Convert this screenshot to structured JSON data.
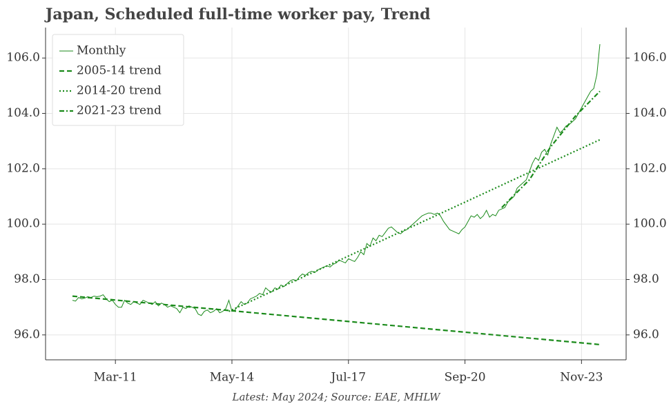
{
  "chart_data": {
    "type": "line",
    "title": "Japan, Scheduled full-time worker pay, Trend",
    "caption": "Latest: May 2024; Source: EAE, MHLW",
    "x": [
      "Jan-10",
      "Feb-10",
      "Mar-10",
      "Apr-10",
      "May-10",
      "Jun-10",
      "Jul-10",
      "Aug-10",
      "Sep-10",
      "Oct-10",
      "Nov-10",
      "Dec-10",
      "Jan-11",
      "Feb-11",
      "Mar-11",
      "Apr-11",
      "May-11",
      "Jun-11",
      "Jul-11",
      "Aug-11",
      "Sep-11",
      "Oct-11",
      "Nov-11",
      "Dec-11",
      "Jan-12",
      "Feb-12",
      "Mar-12",
      "Apr-12",
      "May-12",
      "Jun-12",
      "Jul-12",
      "Aug-12",
      "Sep-12",
      "Oct-12",
      "Nov-12",
      "Dec-12",
      "Jan-13",
      "Feb-13",
      "Mar-13",
      "Apr-13",
      "May-13",
      "Jun-13",
      "Jul-13",
      "Aug-13",
      "Sep-13",
      "Oct-13",
      "Nov-13",
      "Dec-13",
      "Jan-14",
      "Feb-14",
      "Mar-14",
      "Apr-14",
      "May-14",
      "Jun-14",
      "Jul-14",
      "Aug-14",
      "Sep-14",
      "Oct-14",
      "Nov-14",
      "Dec-14",
      "Jan-15",
      "Feb-15",
      "Mar-15",
      "Apr-15",
      "May-15",
      "Jun-15",
      "Jul-15",
      "Aug-15",
      "Sep-15",
      "Oct-15",
      "Nov-15",
      "Dec-15",
      "Jan-16",
      "Feb-16",
      "Mar-16",
      "Apr-16",
      "May-16",
      "Jun-16",
      "Jul-16",
      "Aug-16",
      "Sep-16",
      "Oct-16",
      "Nov-16",
      "Dec-16",
      "Jan-17",
      "Feb-17",
      "Mar-17",
      "Apr-17",
      "May-17",
      "Jun-17",
      "Jul-17",
      "Aug-17",
      "Sep-17",
      "Oct-17",
      "Nov-17",
      "Dec-17",
      "Jan-18",
      "Feb-18",
      "Mar-18",
      "Apr-18",
      "May-18",
      "Jun-18",
      "Jul-18",
      "Aug-18",
      "Sep-18",
      "Oct-18",
      "Nov-18",
      "Dec-18",
      "Jan-19",
      "Feb-19",
      "Mar-19",
      "Apr-19",
      "May-19",
      "Jun-19",
      "Jul-19",
      "Aug-19",
      "Sep-19",
      "Oct-19",
      "Nov-19",
      "Dec-19",
      "Jan-20",
      "Feb-20",
      "Mar-20",
      "Apr-20",
      "May-20",
      "Jun-20",
      "Jul-20",
      "Aug-20",
      "Sep-20",
      "Oct-20",
      "Nov-20",
      "Dec-20",
      "Jan-21",
      "Feb-21",
      "Mar-21",
      "Apr-21",
      "May-21",
      "Jun-21",
      "Jul-21",
      "Aug-21",
      "Sep-21",
      "Oct-21",
      "Nov-21",
      "Dec-21",
      "Jan-22",
      "Feb-22",
      "Mar-22",
      "Apr-22",
      "May-22",
      "Jun-22",
      "Jul-22",
      "Aug-22",
      "Sep-22",
      "Oct-22",
      "Nov-22",
      "Dec-22",
      "Jan-23",
      "Feb-23",
      "Mar-23",
      "Apr-23",
      "May-23",
      "Jun-23",
      "Jul-23",
      "Aug-23",
      "Sep-23",
      "Oct-23",
      "Nov-23",
      "Dec-23",
      "Jan-24",
      "Feb-24",
      "Mar-24",
      "Apr-24",
      "May-24"
    ],
    "xticks": [
      "Mar-11",
      "May-14",
      "Jul-17",
      "Sep-20",
      "Nov-23"
    ],
    "ylim": [
      95.1,
      107.1
    ],
    "yticks": [
      {
        "value": 96,
        "label": "96.0"
      },
      {
        "value": 98,
        "label": "98.0"
      },
      {
        "value": 100,
        "label": "100.0"
      },
      {
        "value": 102,
        "label": "102.0"
      },
      {
        "value": 104,
        "label": "104.0"
      },
      {
        "value": 106,
        "label": "106.0"
      }
    ],
    "grid": true,
    "legend": "upper left",
    "series": [
      {
        "name": "Monthly",
        "color": "#1a8a1a",
        "style": "solid",
        "values": [
          97.25,
          97.22,
          97.35,
          97.3,
          97.33,
          97.38,
          97.35,
          97.4,
          97.38,
          97.4,
          97.45,
          97.3,
          97.2,
          97.25,
          97.1,
          97.0,
          97.0,
          97.25,
          97.15,
          97.1,
          97.2,
          97.15,
          97.1,
          97.25,
          97.2,
          97.15,
          97.1,
          97.2,
          97.05,
          97.15,
          97.1,
          97.0,
          97.05,
          97.0,
          96.95,
          96.8,
          97.0,
          96.95,
          97.05,
          97.0,
          96.95,
          96.75,
          96.7,
          96.85,
          96.9,
          96.8,
          96.85,
          96.95,
          96.8,
          96.85,
          96.95,
          97.25,
          96.85,
          96.9,
          97.05,
          97.2,
          97.1,
          97.15,
          97.3,
          97.35,
          97.4,
          97.5,
          97.45,
          97.7,
          97.6,
          97.55,
          97.7,
          97.65,
          97.8,
          97.75,
          97.85,
          97.95,
          98.0,
          97.95,
          98.1,
          98.2,
          98.15,
          98.25,
          98.3,
          98.25,
          98.35,
          98.4,
          98.45,
          98.5,
          98.45,
          98.55,
          98.6,
          98.7,
          98.65,
          98.6,
          98.75,
          98.7,
          98.65,
          98.8,
          99.0,
          98.9,
          99.3,
          99.2,
          99.5,
          99.4,
          99.6,
          99.55,
          99.7,
          99.85,
          99.9,
          99.8,
          99.7,
          99.65,
          99.75,
          99.8,
          99.9,
          100.0,
          100.1,
          100.2,
          100.3,
          100.35,
          100.4,
          100.4,
          100.35,
          100.4,
          100.3,
          100.1,
          99.95,
          99.8,
          99.75,
          99.7,
          99.65,
          99.8,
          99.9,
          100.1,
          100.3,
          100.25,
          100.35,
          100.2,
          100.3,
          100.5,
          100.25,
          100.35,
          100.3,
          100.5,
          100.55,
          100.6,
          100.8,
          100.9,
          101.0,
          101.3,
          101.4,
          101.5,
          101.6,
          101.9,
          102.2,
          102.4,
          102.3,
          102.6,
          102.7,
          102.5,
          102.9,
          103.2,
          103.5,
          103.3,
          103.4,
          103.55,
          103.6,
          103.7,
          103.8,
          104.0,
          104.2,
          104.4,
          104.6,
          104.8,
          104.9,
          105.4,
          106.5
        ]
      },
      {
        "name": "2005-14 trend",
        "color": "#1a8a1a",
        "style": "dashed",
        "x": [
          "Jan-10",
          "May-24"
        ],
        "values": [
          97.4,
          95.65
        ]
      },
      {
        "name": "2014-20 trend",
        "color": "#1a8a1a",
        "style": "dotted",
        "x": [
          "Apr-14",
          "May-24"
        ],
        "values": [
          96.85,
          103.05
        ]
      },
      {
        "name": "2021-23 trend",
        "color": "#1a8a1a",
        "style": "dashdot",
        "x": [
          "Sep-21",
          "Jun-22",
          "Jan-23",
          "Sep-23",
          "May-24"
        ],
        "values": [
          100.6,
          101.6,
          102.8,
          103.9,
          104.8
        ]
      }
    ]
  }
}
